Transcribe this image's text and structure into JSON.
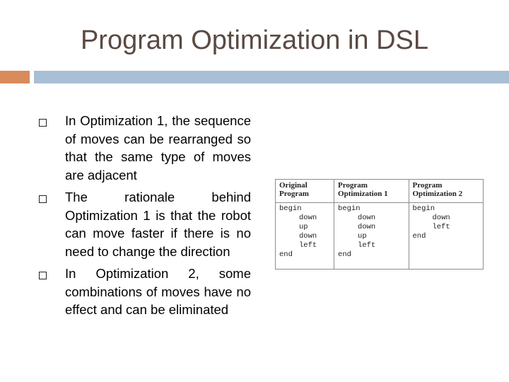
{
  "slide": {
    "title": "Program Optimization in DSL"
  },
  "bullets": [
    {
      "text": "In Optimization 1, the sequence of moves can be rearranged so that the same type of moves are adjacent"
    },
    {
      "text": "The rationale behind Optimization 1 is that the robot can move faster if there is no need to change the direction"
    },
    {
      "text": "In Optimization 2, some combinations of moves have no effect and can be eliminated"
    }
  ],
  "table": {
    "headers": [
      [
        "Original",
        "Program"
      ],
      [
        "Program",
        "Optimization 1"
      ],
      [
        "Program",
        "Optimization 2"
      ]
    ],
    "columns": [
      [
        "begin",
        "down",
        "up",
        "down",
        "left",
        "",
        "end"
      ],
      [
        "begin",
        "down",
        "down",
        "up",
        "left",
        "end"
      ],
      [
        "begin",
        "down",
        "left",
        "end"
      ]
    ]
  }
}
